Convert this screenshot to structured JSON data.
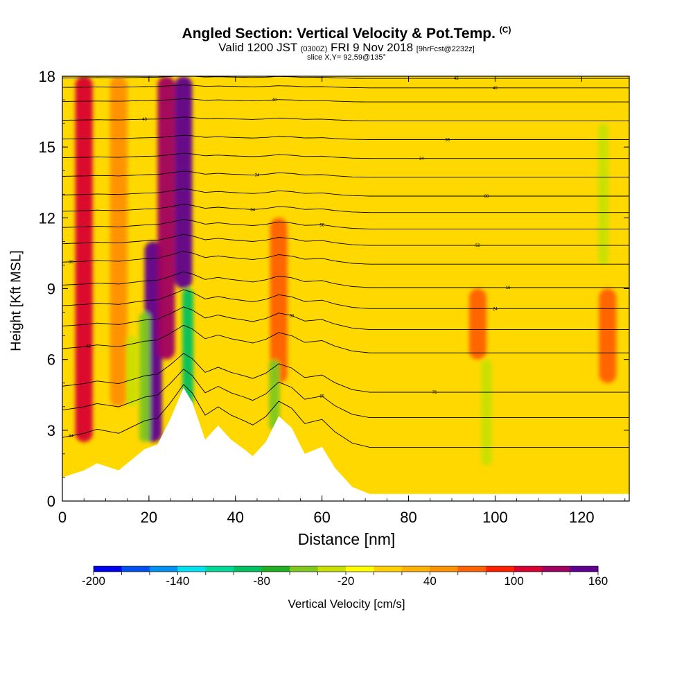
{
  "title": {
    "main": "Angled Section: Vertical Velocity & Pot.Temp.",
    "main_tag": "(C)",
    "valid_prefix": "Valid 1200 JST",
    "valid_utc": "(0300Z)",
    "valid_date": "FRI 9 Nov 2018",
    "valid_fcst": "[9hrFcst@2232z]",
    "slice": "slice X,Y= 92,59@135°"
  },
  "chart_data": {
    "type": "heatmap",
    "xlabel": "Distance [nm]",
    "ylabel": "Height [Kft MSL]",
    "xlim": [
      0,
      131
    ],
    "ylim": [
      0,
      18
    ],
    "x_ticks": [
      0,
      20,
      40,
      60,
      80,
      100,
      120
    ],
    "y_ticks": [
      0,
      3,
      6,
      9,
      12,
      15,
      18
    ],
    "colorbar": {
      "label": "Vertical Velocity [cm/s]",
      "min": -200,
      "max": 160,
      "step": 20,
      "tick_labels": [
        "-200",
        "-140",
        "-80",
        "-20",
        "40",
        "100",
        "160"
      ],
      "colors": [
        "#0000f0",
        "#0050f0",
        "#0090f0",
        "#00e0f0",
        "#00d898",
        "#00c060",
        "#20b020",
        "#80c820",
        "#c8e000",
        "#ffff00",
        "#ffd000",
        "#ffb000",
        "#ff9000",
        "#ff6000",
        "#ff2000",
        "#d80030",
        "#a00060",
        "#600090"
      ]
    },
    "updraft_bands": [
      {
        "x": 5,
        "z_min": 2.5,
        "z_max": 18,
        "velocity": 100
      },
      {
        "x": 21,
        "z_min": 2.5,
        "z_max": 11,
        "velocity": 140
      },
      {
        "x": 24,
        "z_min": 6,
        "z_max": 18,
        "velocity": 120
      },
      {
        "x": 28,
        "z_min": 9,
        "z_max": 18,
        "velocity": 160
      },
      {
        "x": 50,
        "z_min": 5,
        "z_max": 12,
        "velocity": 60
      },
      {
        "x": 96,
        "z_min": 6,
        "z_max": 9,
        "velocity": 60
      },
      {
        "x": 126,
        "z_min": 5,
        "z_max": 9,
        "velocity": 60
      },
      {
        "x": 13,
        "z_min": 4,
        "z_max": 18,
        "velocity": 40
      }
    ],
    "downdraft_bands": [
      {
        "x": 19,
        "z_min": 2.5,
        "z_max": 8,
        "velocity": -60
      },
      {
        "x": 29,
        "z_min": 4,
        "z_max": 9,
        "velocity": -100
      },
      {
        "x": 49,
        "z_min": 3,
        "z_max": 6,
        "velocity": -60
      },
      {
        "x": 16,
        "z_min": 4,
        "z_max": 7,
        "velocity": -40
      },
      {
        "x": 98,
        "z_min": 1.5,
        "z_max": 6,
        "velocity": -30
      },
      {
        "x": 125,
        "z_min": 10,
        "z_max": 16,
        "velocity": -30
      }
    ],
    "terrain": [
      {
        "x": 0,
        "z": 1.0
      },
      {
        "x": 5,
        "z": 1.3
      },
      {
        "x": 8,
        "z": 1.6
      },
      {
        "x": 13,
        "z": 1.3
      },
      {
        "x": 17,
        "z": 1.9
      },
      {
        "x": 19,
        "z": 2.2
      },
      {
        "x": 22,
        "z": 2.4
      },
      {
        "x": 25,
        "z": 3.5
      },
      {
        "x": 28,
        "z": 4.8
      },
      {
        "x": 30,
        "z": 4.2
      },
      {
        "x": 33,
        "z": 2.6
      },
      {
        "x": 36,
        "z": 3.2
      },
      {
        "x": 39,
        "z": 2.6
      },
      {
        "x": 42,
        "z": 2.2
      },
      {
        "x": 44,
        "z": 1.9
      },
      {
        "x": 47,
        "z": 2.5
      },
      {
        "x": 50,
        "z": 3.6
      },
      {
        "x": 53,
        "z": 3.1
      },
      {
        "x": 56,
        "z": 2.0
      },
      {
        "x": 60,
        "z": 2.3
      },
      {
        "x": 63,
        "z": 1.4
      },
      {
        "x": 67,
        "z": 0.6
      },
      {
        "x": 71,
        "z": 0.3
      },
      {
        "x": 131,
        "z": 0.3
      }
    ],
    "isentropes": [
      {
        "value": "84",
        "z0": 2.1,
        "label_x": 2
      },
      {
        "value": "80",
        "z0": 3.4,
        "label_x": 60
      },
      {
        "value": "76",
        "z0": 4.5,
        "label_x": 86
      },
      {
        "value": "42",
        "z0": 6.2,
        "label_x": 6
      },
      {
        "value": "50",
        "z0": 7.2,
        "label_x": 53
      },
      {
        "value": "24",
        "z0": 8.1,
        "label_x": 100
      },
      {
        "value": "16",
        "z0": 9.0,
        "label_x": 103
      },
      {
        "value": "30",
        "z0": 10.0,
        "label_x": 2
      },
      {
        "value": "52",
        "z0": 10.8,
        "label_x": 96
      },
      {
        "value": "56",
        "z0": 11.5,
        "label_x": 60
      },
      {
        "value": "34",
        "z0": 12.2,
        "label_x": 44
      },
      {
        "value": "88",
        "z0": 12.9,
        "label_x": 98
      },
      {
        "value": "34",
        "z0": 13.7,
        "label_x": 45
      },
      {
        "value": "34",
        "z0": 14.5,
        "label_x": 83
      },
      {
        "value": "36",
        "z0": 15.3,
        "label_x": 89
      },
      {
        "value": "40",
        "z0": 16.1,
        "label_x": 19
      },
      {
        "value": "40",
        "z0": 16.9,
        "label_x": 49
      },
      {
        "value": "40",
        "z0": 17.5,
        "label_x": 100
      },
      {
        "value": "42",
        "z0": 17.9,
        "label_x": 91
      }
    ]
  }
}
